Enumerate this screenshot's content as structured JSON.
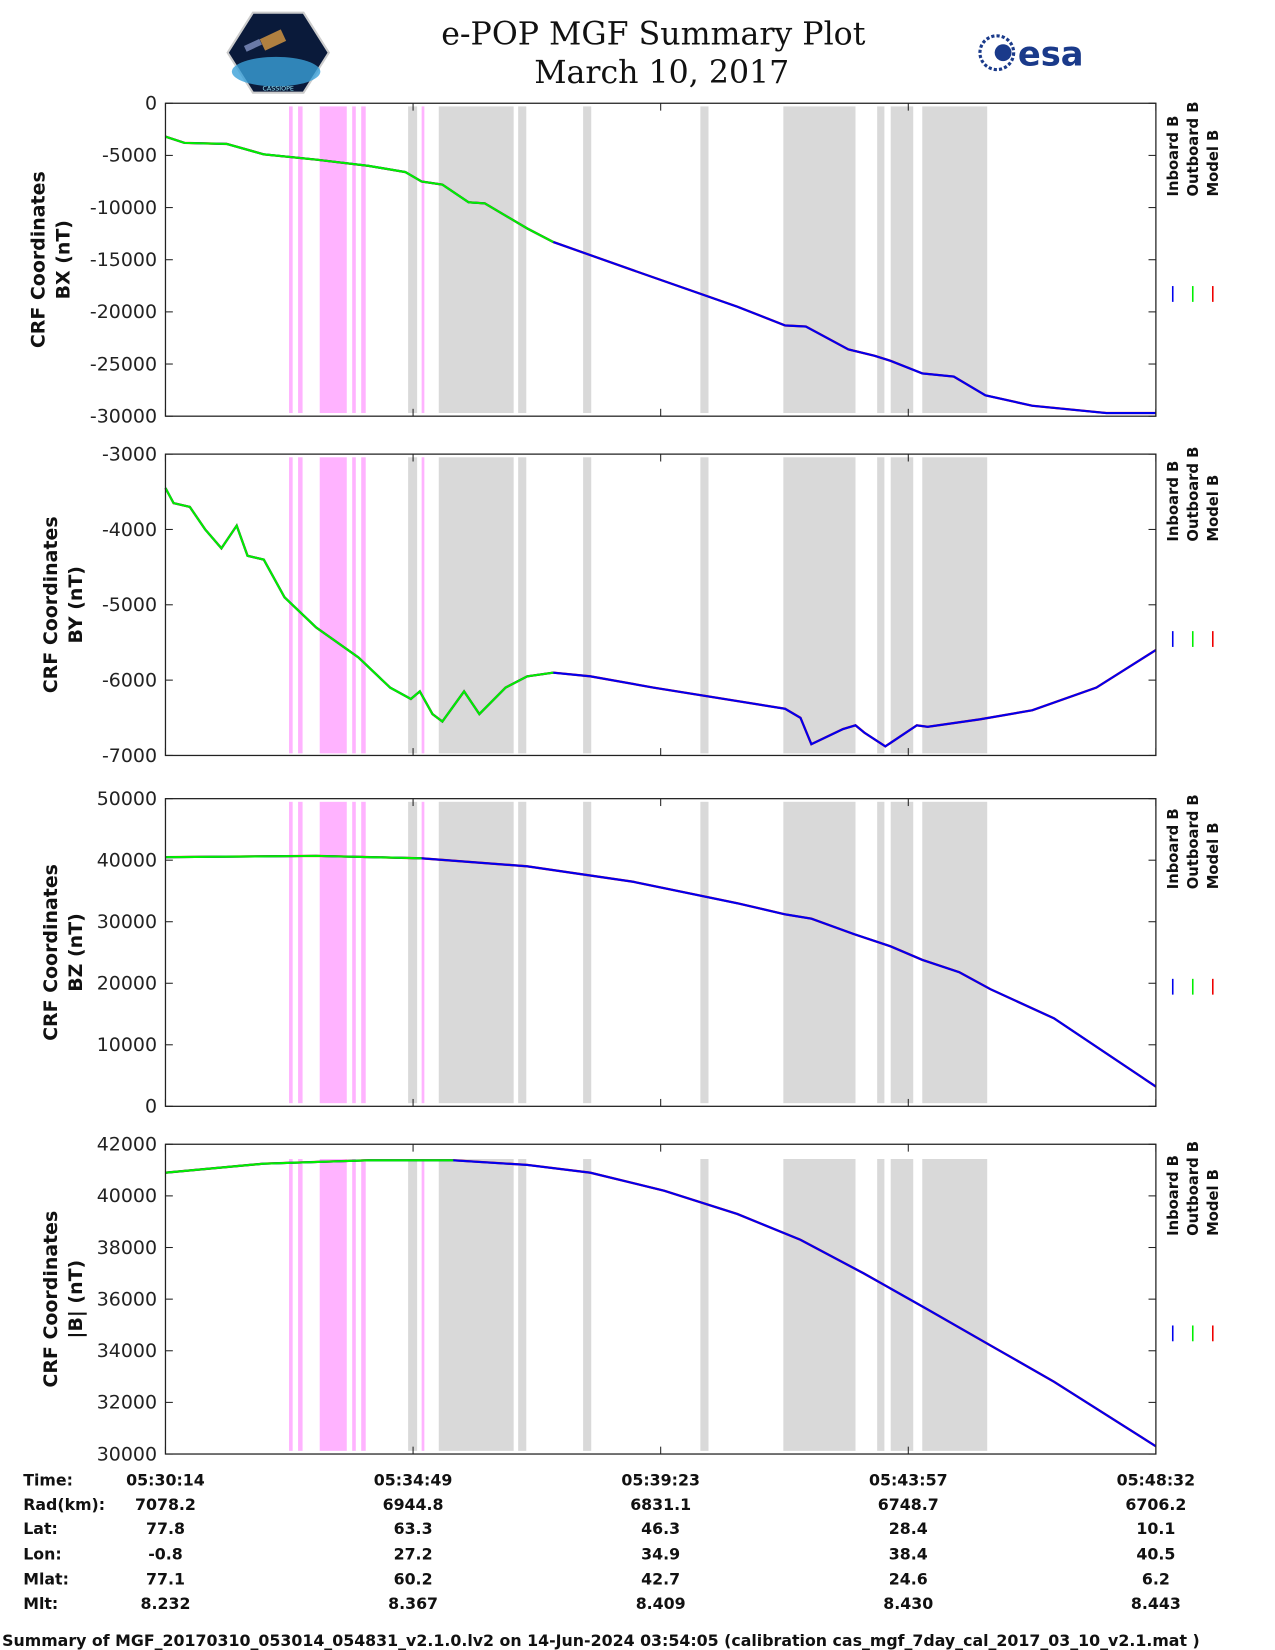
{
  "header": {
    "title_line1": "e-POP MGF Summary Plot",
    "title_line2": "March 10, 2017",
    "left_logo": "CASSIOPE",
    "right_logo": "esa"
  },
  "colors": {
    "inboard": "#0000ee",
    "outboard": "#00ee00",
    "model": "#ee0000",
    "pink_shade": "#ffb3ff",
    "gray_shade": "#d9d9d9"
  },
  "chart_data": {
    "type": "line",
    "x_unit": "seconds since 05:30:14",
    "xlim": [
      0,
      1098
    ],
    "x_ticks": [
      0,
      274.5,
      549,
      823.5,
      1098
    ],
    "legend": [
      "Inboard B",
      "Outboard B",
      "Model B"
    ],
    "legend_placement": "right",
    "shaded_intervals": {
      "pink": [
        [
          137,
          141
        ],
        [
          147,
          152
        ],
        [
          171,
          201
        ],
        [
          207,
          211
        ],
        [
          217,
          222
        ],
        [
          284,
          287
        ]
      ],
      "gray": [
        [
          269,
          279
        ],
        [
          303,
          386
        ],
        [
          391,
          400
        ],
        [
          463,
          472
        ],
        [
          593,
          602
        ],
        [
          685,
          765
        ],
        [
          789,
          797
        ],
        [
          804,
          829
        ],
        [
          839,
          911
        ]
      ]
    },
    "panels": [
      {
        "ylabel_line1": "CRF Coordinates",
        "ylabel_line2": "BX (nT)",
        "ylim": [
          -30000,
          0
        ],
        "y_ticks": [
          0,
          -5000,
          -10000,
          -15000,
          -20000,
          -25000,
          -30000
        ],
        "y_tick_labels": [
          "0",
          "-5000",
          "-10000",
          "-15000",
          "-20000",
          "-25000",
          "-30000"
        ],
        "outboard_until": 430,
        "t": [
          0,
          21,
          68,
          109,
          167,
          225,
          266,
          284,
          307,
          336,
          354,
          401,
          430,
          518,
          634,
          687,
          710,
          757,
          786,
          804,
          839,
          874,
          909,
          961,
          1043,
          1098
        ],
        "values": [
          -3200,
          -3800,
          -3900,
          -4900,
          -5400,
          -6000,
          -6600,
          -7500,
          -7800,
          -9500,
          -9600,
          -12000,
          -13300,
          -16000,
          -19500,
          -21300,
          -21400,
          -23600,
          -24200,
          -24700,
          -25900,
          -26200,
          -28000,
          -29000,
          -29700,
          -29700
        ]
      },
      {
        "ylabel_line1": "CRF Coordinates",
        "ylabel_line2": "BY (nT)",
        "ylim": [
          -7000,
          -3000
        ],
        "y_ticks": [
          -3000,
          -4000,
          -5000,
          -6000,
          -7000
        ],
        "y_tick_labels": [
          "-3000",
          "-4000",
          "-5000",
          "-6000",
          "-7000"
        ],
        "outboard_until": 430,
        "t": [
          0,
          9,
          27,
          44,
          62,
          79,
          91,
          109,
          132,
          167,
          214,
          249,
          272,
          282,
          296,
          307,
          331,
          348,
          377,
          401,
          430,
          471,
          541,
          687,
          704,
          716,
          751,
          765,
          775,
          798,
          833,
          845,
          903,
          961,
          1032,
          1098
        ],
        "values": [
          -3450,
          -3650,
          -3700,
          -4000,
          -4250,
          -3950,
          -4350,
          -4400,
          -4900,
          -5300,
          -5700,
          -6100,
          -6250,
          -6150,
          -6450,
          -6550,
          -6150,
          -6450,
          -6100,
          -5950,
          -5900,
          -5950,
          -6100,
          -6380,
          -6500,
          -6850,
          -6650,
          -6600,
          -6700,
          -6880,
          -6600,
          -6620,
          -6520,
          -6400,
          -6100,
          -5600
        ]
      },
      {
        "ylabel_line1": "CRF Coordinates",
        "ylabel_line2": "BZ (nT)",
        "ylim": [
          0,
          50000
        ],
        "y_ticks": [
          50000,
          40000,
          30000,
          20000,
          10000,
          0
        ],
        "y_tick_labels": [
          "50000",
          "40000",
          "30000",
          "20000",
          "10000",
          "0"
        ],
        "outboard_until": 320,
        "t": [
          0,
          167,
          284,
          401,
          518,
          634,
          687,
          716,
          763,
          804,
          839,
          880,
          915,
          985,
          1098
        ],
        "values": [
          40500,
          40700,
          40300,
          39000,
          36500,
          33000,
          31200,
          30500,
          28000,
          26000,
          23800,
          21800,
          19000,
          14300,
          3200
        ]
      },
      {
        "ylabel_line1": "CRF Coordinates",
        "ylabel_line2": "|B| (nT)",
        "ylim": [
          30000,
          42000
        ],
        "y_ticks": [
          42000,
          40000,
          38000,
          36000,
          34000,
          32000,
          30000
        ],
        "y_tick_labels": [
          "42000",
          "40000",
          "38000",
          "36000",
          "34000",
          "32000",
          "30000"
        ],
        "outboard_until": 320,
        "t": [
          0,
          109,
          225,
          319,
          401,
          471,
          553,
          634,
          704,
          774,
          845,
          915,
          985,
          1098
        ],
        "values": [
          40900,
          41250,
          41380,
          41380,
          41200,
          40900,
          40200,
          39300,
          38300,
          37000,
          35600,
          34200,
          32800,
          30300
        ]
      }
    ]
  },
  "info_table": {
    "row_labels": [
      "Time:",
      "Rad(km):",
      "Lat:",
      "Lon:",
      "Mlat:",
      "Mlt:"
    ],
    "columns": [
      [
        "05:30:14",
        "7078.2",
        "77.8",
        "-0.8",
        "77.1",
        "8.232"
      ],
      [
        "05:34:49",
        "6944.8",
        "63.3",
        "27.2",
        "60.2",
        "8.367"
      ],
      [
        "05:39:23",
        "6831.1",
        "46.3",
        "34.9",
        "42.7",
        "8.409"
      ],
      [
        "05:43:57",
        "6748.7",
        "28.4",
        "38.4",
        "24.6",
        "8.430"
      ],
      [
        "05:48:32",
        "6706.2",
        "10.1",
        "40.5",
        "6.2",
        "8.443"
      ]
    ]
  },
  "footer": "Summary of MGF_20170310_053014_054831_v2.1.0.lv2 on 14-Jun-2024 03:54:05 (calibration cas_mgf_7day_cal_2017_03_10_v2.1.mat )"
}
